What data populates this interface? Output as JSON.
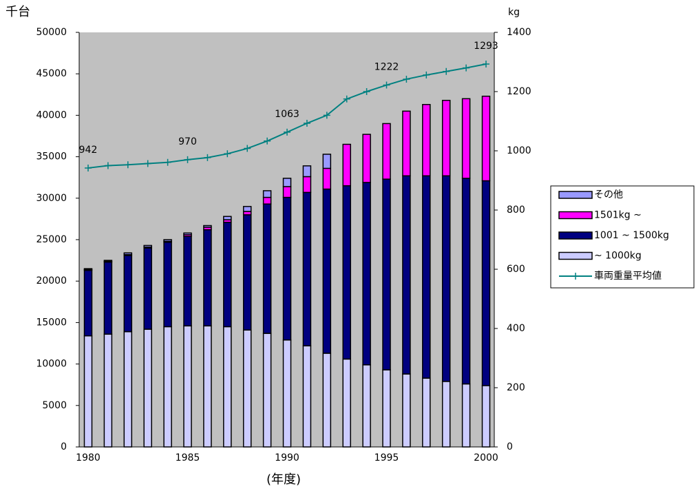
{
  "chart_data": {
    "type": "bar",
    "y_label": "千台",
    "y2_label": "kg",
    "x_label": "(年度)",
    "categories": [
      "1980",
      null,
      null,
      null,
      null,
      "1985",
      null,
      null,
      null,
      null,
      "1990",
      null,
      null,
      null,
      null,
      "1995",
      null,
      null,
      null,
      null,
      "2000"
    ],
    "ylim": [
      0,
      50000
    ],
    "yticks": [
      0,
      5000,
      10000,
      15000,
      20000,
      25000,
      30000,
      35000,
      40000,
      45000,
      50000
    ],
    "y2lim": [
      0,
      1400
    ],
    "y2ticks": [
      0,
      200,
      400,
      600,
      800,
      1000,
      1200,
      1400
    ],
    "plot_background": "#c0c0c0",
    "series": [
      {
        "name": "~ 1000kg",
        "color": "#ccccff",
        "values": [
          13400,
          13600,
          13900,
          14200,
          14500,
          14600,
          14600,
          14500,
          14100,
          13700,
          12900,
          12200,
          11300,
          10600,
          9900,
          9300,
          8800,
          8300,
          7900,
          7600,
          7400
        ]
      },
      {
        "name": "1001 ~ 1500kg",
        "color": "#000080",
        "values": [
          7900,
          8700,
          9200,
          9800,
          10200,
          10800,
          11600,
          12600,
          13900,
          15600,
          17200,
          18500,
          19800,
          20900,
          22000,
          23000,
          23900,
          24400,
          24800,
          24800,
          24700
        ]
      },
      {
        "name": "1501kg ~",
        "color": "#ff00ff",
        "values": [
          100,
          100,
          100,
          100,
          100,
          200,
          300,
          300,
          400,
          800,
          1300,
          1900,
          2500,
          5000,
          5800,
          6700,
          7800,
          8600,
          9100,
          9600,
          10200
        ]
      },
      {
        "name": "その他",
        "color": "#9999ff",
        "values": [
          100,
          100,
          200,
          200,
          200,
          200,
          200,
          400,
          600,
          800,
          1000,
          1300,
          1700,
          0,
          0,
          0,
          0,
          0,
          0,
          0,
          0
        ]
      },
      {
        "name": "車両重量平均値",
        "color": "#008080",
        "type": "line",
        "axis": "y2",
        "values": [
          942,
          950,
          953,
          957,
          961,
          970,
          977,
          990,
          1008,
          1033,
          1063,
          1093,
          1120,
          1175,
          1200,
          1222,
          1242,
          1256,
          1268,
          1280,
          1293
        ]
      }
    ]
  }
}
